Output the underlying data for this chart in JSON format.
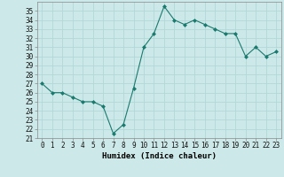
{
  "x": [
    0,
    1,
    2,
    3,
    4,
    5,
    6,
    7,
    8,
    9,
    10,
    11,
    12,
    13,
    14,
    15,
    16,
    17,
    18,
    19,
    20,
    21,
    22,
    23
  ],
  "y": [
    27,
    26,
    26,
    25.5,
    25,
    25,
    24.5,
    21.5,
    22.5,
    26.5,
    31,
    32.5,
    35.5,
    34,
    33.5,
    34,
    33.5,
    33,
    32.5,
    32.5,
    30,
    31,
    30,
    30.5
  ],
  "line_color": "#1a7a6e",
  "marker": "D",
  "marker_size": 2,
  "bg_color": "#cde8e8",
  "grid_color": "#b0d8d8",
  "xlabel": "Humidex (Indice chaleur)",
  "xlim": [
    -0.5,
    23.5
  ],
  "ylim": [
    21,
    36
  ],
  "yticks": [
    21,
    22,
    23,
    24,
    25,
    26,
    27,
    28,
    29,
    30,
    31,
    32,
    33,
    34,
    35
  ],
  "xticks": [
    0,
    1,
    2,
    3,
    4,
    5,
    6,
    7,
    8,
    9,
    10,
    11,
    12,
    13,
    14,
    15,
    16,
    17,
    18,
    19,
    20,
    21,
    22,
    23
  ],
  "xlabel_fontsize": 6.5,
  "tick_fontsize": 5.5
}
